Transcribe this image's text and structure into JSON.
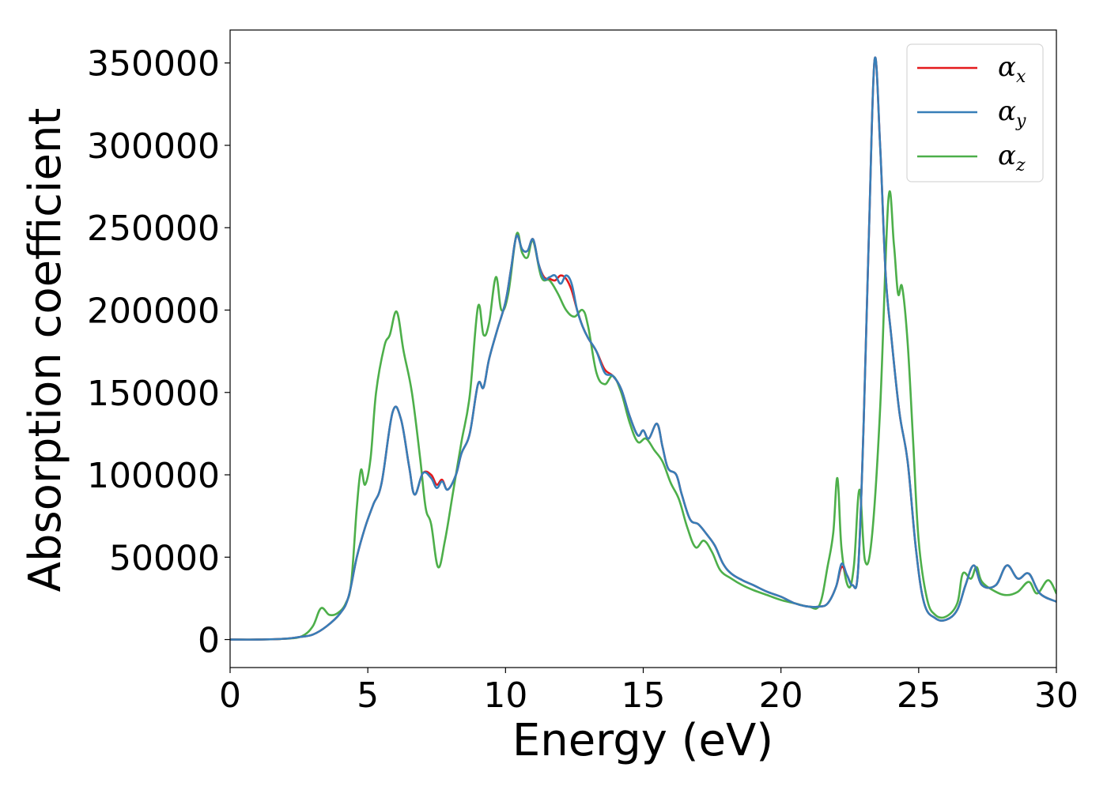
{
  "chart_data": {
    "type": "line",
    "title": "",
    "xlabel": "Energy (eV)",
    "ylabel": "Absorption coefficient",
    "xlim": [
      0,
      30
    ],
    "ylim": [
      -17000,
      370000
    ],
    "x_ticks": [
      0,
      5,
      10,
      15,
      20,
      25,
      30
    ],
    "x_tick_labels": [
      "0",
      "5",
      "10",
      "15",
      "20",
      "25",
      "30"
    ],
    "y_ticks": [
      0,
      50000,
      100000,
      150000,
      200000,
      250000,
      300000,
      350000
    ],
    "y_tick_labels": [
      "0",
      "50000",
      "100000",
      "150000",
      "200000",
      "250000",
      "300000",
      "350000"
    ],
    "grid": false,
    "legend_position": "top-right",
    "series": [
      {
        "name": "αx",
        "symbol": "α",
        "subscript": "x",
        "color": "#e41a1c",
        "points": [
          [
            0,
            0
          ],
          [
            1,
            0
          ],
          [
            2,
            500
          ],
          [
            2.5,
            1500
          ],
          [
            3,
            3000
          ],
          [
            3.5,
            8000
          ],
          [
            4,
            16000
          ],
          [
            4.3,
            26000
          ],
          [
            4.6,
            50000
          ],
          [
            4.9,
            68000
          ],
          [
            5.2,
            82000
          ],
          [
            5.5,
            95000
          ],
          [
            5.9,
            138000
          ],
          [
            6.2,
            134000
          ],
          [
            6.5,
            105000
          ],
          [
            6.7,
            88000
          ],
          [
            7.0,
            101000
          ],
          [
            7.3,
            100000
          ],
          [
            7.5,
            94000
          ],
          [
            7.7,
            97000
          ],
          [
            7.9,
            91000
          ],
          [
            8.2,
            100000
          ],
          [
            8.4,
            113000
          ],
          [
            8.7,
            125000
          ],
          [
            9.0,
            155000
          ],
          [
            9.2,
            153000
          ],
          [
            9.4,
            170000
          ],
          [
            9.7,
            188000
          ],
          [
            10.0,
            205000
          ],
          [
            10.2,
            225000
          ],
          [
            10.4,
            245000
          ],
          [
            10.6,
            237000
          ],
          [
            10.8,
            236000
          ],
          [
            11.0,
            243000
          ],
          [
            11.2,
            228000
          ],
          [
            11.4,
            220000
          ],
          [
            11.6,
            219000
          ],
          [
            11.8,
            218000
          ],
          [
            12.0,
            221000
          ],
          [
            12.2,
            219000
          ],
          [
            12.4,
            212000
          ],
          [
            12.6,
            200000
          ],
          [
            12.8,
            190000
          ],
          [
            13.0,
            183000
          ],
          [
            13.3,
            175000
          ],
          [
            13.6,
            164000
          ],
          [
            13.9,
            160000
          ],
          [
            14.2,
            152000
          ],
          [
            14.5,
            136000
          ],
          [
            14.8,
            124000
          ],
          [
            15.0,
            127000
          ],
          [
            15.2,
            122000
          ],
          [
            15.5,
            131000
          ],
          [
            15.7,
            117000
          ],
          [
            15.9,
            104000
          ],
          [
            16.2,
            100000
          ],
          [
            16.4,
            88000
          ],
          [
            16.7,
            73000
          ],
          [
            17.0,
            70000
          ],
          [
            17.3,
            64000
          ],
          [
            17.6,
            57000
          ],
          [
            17.9,
            46000
          ],
          [
            18.2,
            40000
          ],
          [
            18.6,
            36000
          ],
          [
            19.0,
            33000
          ],
          [
            19.5,
            29000
          ],
          [
            20.0,
            26000
          ],
          [
            20.5,
            22000
          ],
          [
            21.0,
            20000
          ],
          [
            21.4,
            20000
          ],
          [
            21.7,
            22000
          ],
          [
            22.0,
            32000
          ],
          [
            22.2,
            44000
          ],
          [
            22.4,
            39000
          ],
          [
            22.6,
            33000
          ],
          [
            22.8,
            42000
          ],
          [
            23.0,
            130000
          ],
          [
            23.2,
            250000
          ],
          [
            23.4,
            352000
          ],
          [
            23.6,
            300000
          ],
          [
            23.8,
            222000
          ],
          [
            24.0,
            185000
          ],
          [
            24.3,
            138000
          ],
          [
            24.6,
            108000
          ],
          [
            24.9,
            55000
          ],
          [
            25.2,
            22000
          ],
          [
            25.6,
            13000
          ],
          [
            26.0,
            12000
          ],
          [
            26.4,
            18000
          ],
          [
            26.7,
            33000
          ],
          [
            27.0,
            45000
          ],
          [
            27.3,
            33000
          ],
          [
            27.8,
            33000
          ],
          [
            28.2,
            45000
          ],
          [
            28.6,
            37000
          ],
          [
            29.0,
            40000
          ],
          [
            29.4,
            28000
          ],
          [
            30.0,
            23000
          ]
        ]
      },
      {
        "name": "αy",
        "symbol": "α",
        "subscript": "y",
        "color": "#377eb8",
        "points": [
          [
            0,
            0
          ],
          [
            1,
            0
          ],
          [
            2,
            500
          ],
          [
            2.5,
            1500
          ],
          [
            3,
            3000
          ],
          [
            3.5,
            8000
          ],
          [
            4,
            16000
          ],
          [
            4.3,
            26000
          ],
          [
            4.6,
            50000
          ],
          [
            4.9,
            68000
          ],
          [
            5.2,
            82000
          ],
          [
            5.5,
            95000
          ],
          [
            5.9,
            138000
          ],
          [
            6.2,
            134000
          ],
          [
            6.5,
            105000
          ],
          [
            6.7,
            88000
          ],
          [
            7.0,
            101000
          ],
          [
            7.3,
            98000
          ],
          [
            7.5,
            92000
          ],
          [
            7.7,
            96000
          ],
          [
            7.9,
            91000
          ],
          [
            8.2,
            100000
          ],
          [
            8.4,
            113000
          ],
          [
            8.7,
            125000
          ],
          [
            9.0,
            155000
          ],
          [
            9.2,
            153000
          ],
          [
            9.4,
            170000
          ],
          [
            9.7,
            188000
          ],
          [
            10.0,
            205000
          ],
          [
            10.2,
            225000
          ],
          [
            10.4,
            245000
          ],
          [
            10.6,
            237000
          ],
          [
            10.8,
            236000
          ],
          [
            11.0,
            243000
          ],
          [
            11.2,
            228000
          ],
          [
            11.4,
            219000
          ],
          [
            11.6,
            220000
          ],
          [
            11.8,
            221000
          ],
          [
            12.0,
            216000
          ],
          [
            12.2,
            221000
          ],
          [
            12.4,
            216000
          ],
          [
            12.6,
            200000
          ],
          [
            12.8,
            190000
          ],
          [
            13.0,
            183000
          ],
          [
            13.3,
            175000
          ],
          [
            13.6,
            162000
          ],
          [
            13.9,
            160000
          ],
          [
            14.2,
            152000
          ],
          [
            14.5,
            136000
          ],
          [
            14.8,
            124000
          ],
          [
            15.0,
            127000
          ],
          [
            15.2,
            122000
          ],
          [
            15.5,
            131000
          ],
          [
            15.7,
            117000
          ],
          [
            15.9,
            104000
          ],
          [
            16.2,
            100000
          ],
          [
            16.4,
            88000
          ],
          [
            16.7,
            73000
          ],
          [
            17.0,
            70000
          ],
          [
            17.3,
            64000
          ],
          [
            17.6,
            57000
          ],
          [
            17.9,
            46000
          ],
          [
            18.2,
            40000
          ],
          [
            18.6,
            36000
          ],
          [
            19.0,
            33000
          ],
          [
            19.5,
            29000
          ],
          [
            20.0,
            26000
          ],
          [
            20.5,
            22000
          ],
          [
            21.0,
            20000
          ],
          [
            21.4,
            20000
          ],
          [
            21.7,
            22000
          ],
          [
            22.0,
            32000
          ],
          [
            22.2,
            46000
          ],
          [
            22.4,
            39000
          ],
          [
            22.6,
            33000
          ],
          [
            22.8,
            42000
          ],
          [
            23.0,
            130000
          ],
          [
            23.2,
            250000
          ],
          [
            23.4,
            352000
          ],
          [
            23.6,
            300000
          ],
          [
            23.8,
            222000
          ],
          [
            24.0,
            185000
          ],
          [
            24.3,
            138000
          ],
          [
            24.6,
            108000
          ],
          [
            24.9,
            55000
          ],
          [
            25.2,
            22000
          ],
          [
            25.6,
            13000
          ],
          [
            26.0,
            12000
          ],
          [
            26.4,
            18000
          ],
          [
            26.7,
            33000
          ],
          [
            27.0,
            45000
          ],
          [
            27.3,
            33000
          ],
          [
            27.8,
            33000
          ],
          [
            28.2,
            45000
          ],
          [
            28.6,
            37000
          ],
          [
            29.0,
            40000
          ],
          [
            29.4,
            28000
          ],
          [
            30.0,
            23000
          ]
        ]
      },
      {
        "name": "αz",
        "symbol": "α",
        "subscript": "z",
        "color": "#4daf4a",
        "points": [
          [
            0,
            0
          ],
          [
            1,
            0
          ],
          [
            2,
            500
          ],
          [
            2.6,
            2000
          ],
          [
            3.0,
            8000
          ],
          [
            3.3,
            19000
          ],
          [
            3.6,
            15000
          ],
          [
            3.9,
            16000
          ],
          [
            4.2,
            22000
          ],
          [
            4.4,
            35000
          ],
          [
            4.6,
            80000
          ],
          [
            4.75,
            103000
          ],
          [
            4.9,
            94000
          ],
          [
            5.1,
            110000
          ],
          [
            5.3,
            150000
          ],
          [
            5.6,
            178000
          ],
          [
            5.8,
            185000
          ],
          [
            6.05,
            199000
          ],
          [
            6.3,
            175000
          ],
          [
            6.6,
            150000
          ],
          [
            6.9,
            110000
          ],
          [
            7.1,
            80000
          ],
          [
            7.3,
            70000
          ],
          [
            7.55,
            44000
          ],
          [
            7.8,
            60000
          ],
          [
            8.1,
            90000
          ],
          [
            8.4,
            120000
          ],
          [
            8.7,
            148000
          ],
          [
            9.0,
            202000
          ],
          [
            9.2,
            185000
          ],
          [
            9.4,
            192000
          ],
          [
            9.65,
            220000
          ],
          [
            9.85,
            200000
          ],
          [
            10.1,
            210000
          ],
          [
            10.4,
            246000
          ],
          [
            10.6,
            235000
          ],
          [
            10.8,
            232000
          ],
          [
            11.0,
            242000
          ],
          [
            11.3,
            220000
          ],
          [
            11.6,
            218000
          ],
          [
            11.9,
            210000
          ],
          [
            12.2,
            200000
          ],
          [
            12.5,
            196000
          ],
          [
            12.8,
            200000
          ],
          [
            13.0,
            190000
          ],
          [
            13.3,
            162000
          ],
          [
            13.6,
            155000
          ],
          [
            13.9,
            160000
          ],
          [
            14.2,
            150000
          ],
          [
            14.5,
            132000
          ],
          [
            14.8,
            120000
          ],
          [
            15.1,
            122000
          ],
          [
            15.4,
            115000
          ],
          [
            15.7,
            108000
          ],
          [
            16.0,
            95000
          ],
          [
            16.3,
            85000
          ],
          [
            16.6,
            68000
          ],
          [
            16.9,
            56000
          ],
          [
            17.2,
            60000
          ],
          [
            17.5,
            53000
          ],
          [
            17.8,
            42000
          ],
          [
            18.2,
            37000
          ],
          [
            18.6,
            33000
          ],
          [
            19.0,
            30000
          ],
          [
            19.5,
            27000
          ],
          [
            20.0,
            24000
          ],
          [
            20.5,
            22000
          ],
          [
            21.0,
            20000
          ],
          [
            21.4,
            21000
          ],
          [
            21.7,
            45000
          ],
          [
            21.9,
            65000
          ],
          [
            22.05,
            98000
          ],
          [
            22.2,
            55000
          ],
          [
            22.45,
            32000
          ],
          [
            22.65,
            45000
          ],
          [
            22.85,
            91000
          ],
          [
            23.05,
            48000
          ],
          [
            23.3,
            62000
          ],
          [
            23.6,
            140000
          ],
          [
            23.9,
            267000
          ],
          [
            24.1,
            240000
          ],
          [
            24.25,
            210000
          ],
          [
            24.4,
            214000
          ],
          [
            24.6,
            180000
          ],
          [
            24.8,
            120000
          ],
          [
            25.0,
            60000
          ],
          [
            25.3,
            25000
          ],
          [
            25.6,
            15000
          ],
          [
            26.0,
            14000
          ],
          [
            26.4,
            22000
          ],
          [
            26.6,
            40000
          ],
          [
            26.9,
            37000
          ],
          [
            27.1,
            44000
          ],
          [
            27.3,
            35000
          ],
          [
            27.8,
            29000
          ],
          [
            28.2,
            27000
          ],
          [
            28.6,
            29000
          ],
          [
            29.0,
            35000
          ],
          [
            29.3,
            28000
          ],
          [
            29.7,
            36000
          ],
          [
            30.0,
            28000
          ]
        ]
      }
    ]
  }
}
